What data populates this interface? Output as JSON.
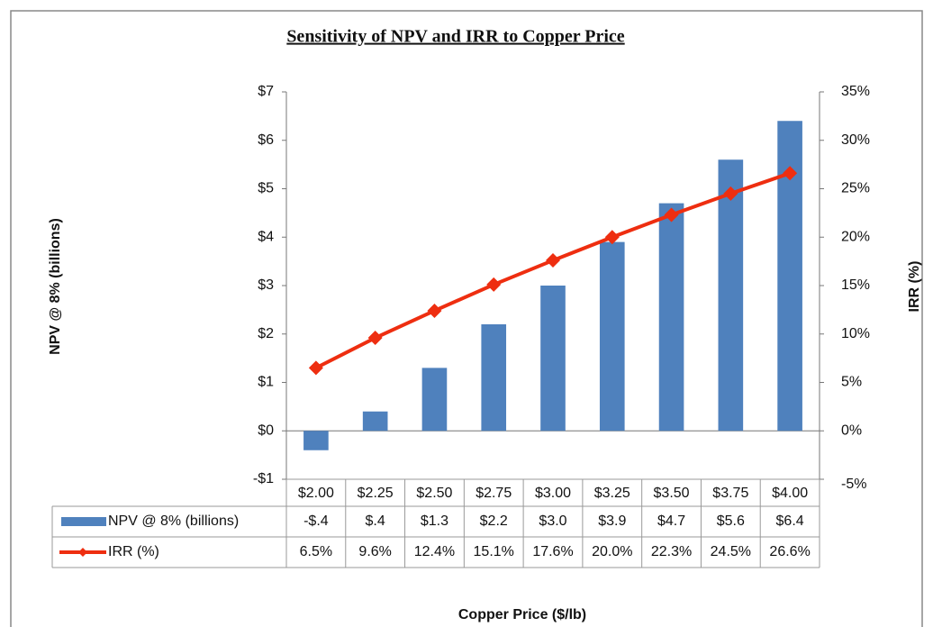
{
  "chart_data": {
    "type": "bar",
    "title": "Sensitivity of NPV and IRR to Copper Price",
    "ylabel": "NPV @ 8% (billions)",
    "y2label": "IRR  (%)",
    "xlabel": "Copper Price ($/lb)",
    "categories": [
      "$2.00",
      "$2.25",
      "$2.50",
      "$2.75",
      "$3.00",
      "$3.25",
      "$3.50",
      "$3.75",
      "$4.00"
    ],
    "series": [
      {
        "name": "NPV @ 8% (billions)",
        "type": "bar",
        "color": "#4f81bd",
        "values": [
          -0.4,
          0.4,
          1.3,
          2.2,
          3.0,
          3.9,
          4.7,
          5.6,
          6.4
        ],
        "value_labels": [
          "-$.4",
          "$.4",
          "$1.3",
          "$2.2",
          "$3.0",
          "$3.9",
          "$4.7",
          "$5.6",
          "$6.4"
        ]
      },
      {
        "name": "IRR (%)",
        "type": "line",
        "axis": "y2",
        "color": "#ee2e10",
        "values": [
          6.5,
          9.6,
          12.4,
          15.1,
          17.6,
          20.0,
          22.3,
          24.5,
          26.6
        ],
        "value_labels": [
          "6.5%",
          "9.6%",
          "12.4%",
          "15.1%",
          "17.6%",
          "20.0%",
          "22.3%",
          "24.5%",
          "26.6%"
        ]
      }
    ],
    "ylim": [
      -1,
      7
    ],
    "yticks": [
      {
        "value": -1,
        "label": "-$1"
      },
      {
        "value": 0,
        "label": "$0"
      },
      {
        "value": 1,
        "label": "$1"
      },
      {
        "value": 2,
        "label": "$2"
      },
      {
        "value": 3,
        "label": "$3"
      },
      {
        "value": 4,
        "label": "$4"
      },
      {
        "value": 5,
        "label": "$5"
      },
      {
        "value": 6,
        "label": "$6"
      },
      {
        "value": 7,
        "label": "$7"
      }
    ],
    "y2lim": [
      -5,
      35
    ],
    "y2ticks": [
      {
        "value": -5,
        "label": "-5%"
      },
      {
        "value": 0,
        "label": "0%"
      },
      {
        "value": 5,
        "label": "5%"
      },
      {
        "value": 10,
        "label": "10%"
      },
      {
        "value": 15,
        "label": "15%"
      },
      {
        "value": 20,
        "label": "20%"
      },
      {
        "value": 25,
        "label": "25%"
      },
      {
        "value": 30,
        "label": "30%"
      },
      {
        "value": 35,
        "label": "35%"
      }
    ]
  }
}
